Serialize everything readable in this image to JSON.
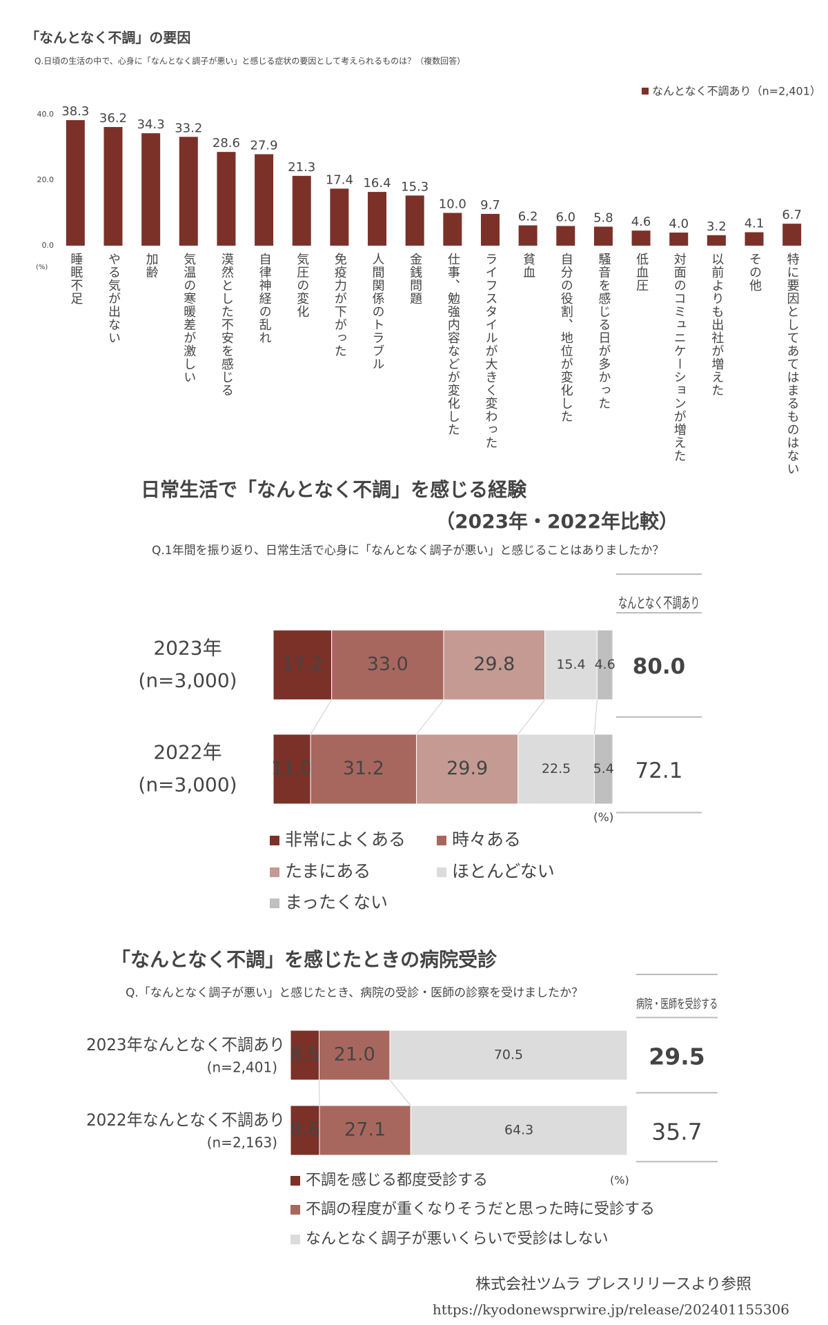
{
  "chart_data": [
    {
      "type": "bar",
      "title": "「なんとなく不調」の要因",
      "subtitle": "Q.日頃の生活の中で、心身に「なんとなく調子が悪い」と感じる症状の要因として考えられるものは？（複数回答）",
      "y_unit": "(%)",
      "categories": [
        "睡眠不足",
        "やる気が出ない",
        "加齢",
        "気温の寒暖差が激しい",
        "漠然とした不安を感じる",
        "自律神経の乱れ",
        "気圧の変化",
        "免疫力が下がった",
        "人間関係のトラブル",
        "金銭問題",
        "仕事、勉強内容などが変化した",
        "ライフスタイルが大きく変わった",
        "貧血",
        "自分の役割、地位が変化した",
        "騒音を感じる日が多かった",
        "低血圧",
        "対面のコミュニケーションが増えた",
        "以前よりも出社が増えた",
        "その他",
        "特に要因としてあてはまるものはない"
      ],
      "series": [
        {
          "name": "なんとなく不調あり（n=2,401）",
          "color": "#7b3128",
          "values": [
            38.3,
            36.2,
            34.3,
            33.2,
            28.6,
            27.9,
            21.3,
            17.4,
            16.4,
            15.3,
            10.0,
            9.7,
            6.2,
            6.0,
            5.8,
            4.6,
            4.0,
            3.2,
            4.1,
            6.7
          ],
          "value_labels": [
            "38.3",
            "36.2",
            "34.3",
            "33.2",
            "28.6",
            "27.9",
            "21.3",
            "17.4",
            "16.4",
            "15.3",
            "10.0",
            "9.7",
            "6.2",
            "6.0",
            "5.8",
            "4.6",
            "4.0",
            "3.2",
            "4.1",
            "6.7"
          ]
        }
      ],
      "ylim": [
        0,
        40
      ],
      "yticks": [
        {
          "value": 0,
          "label": "0.0"
        },
        {
          "value": 20,
          "label": "20.0"
        },
        {
          "value": 40,
          "label": "40.0"
        }
      ],
      "grid": false,
      "legend": "top-right"
    },
    {
      "type": "stacked-bar-horizontal",
      "title": "日常生活で「なんとなく不調」を感じる経験",
      "subtitle": "（2023年・2022年比較）",
      "question": "Q.1年間を振り返り、日常生活で心身に「なんとなく調子が悪い」と感じることはありましたか？",
      "x_unit": "(%)",
      "categories": [
        "2023年",
        "2022年"
      ],
      "n_labels": [
        "(n=3,000)",
        "(n=3,000)"
      ],
      "series": [
        {
          "name": "非常によくある",
          "color": "#7b3128",
          "values": [
            17.2,
            11.0
          ],
          "value_labels": [
            "17.2",
            "11.0"
          ]
        },
        {
          "name": "時々ある",
          "color": "#a8675e",
          "values": [
            33.0,
            31.2
          ],
          "value_labels": [
            "33.0",
            "31.2"
          ]
        },
        {
          "name": "たまにある",
          "color": "#c49a93",
          "values": [
            29.8,
            29.9
          ],
          "value_labels": [
            "29.8",
            "29.9"
          ]
        },
        {
          "name": "ほとんどない",
          "color": "#dcdcdc",
          "values": [
            15.4,
            22.5
          ],
          "value_labels": [
            "15.4",
            "22.5"
          ]
        },
        {
          "name": "まったくない",
          "color": "#bfbfbf",
          "values": [
            4.6,
            5.4
          ],
          "value_labels": [
            "4.6",
            "5.4"
          ]
        }
      ],
      "xlim": [
        0,
        100
      ],
      "totals": {
        "header": "なんとなく不調あり",
        "values": [
          80.0,
          72.1
        ],
        "value_labels": [
          "80.0",
          "72.1"
        ]
      }
    },
    {
      "type": "stacked-bar-horizontal",
      "title": "「なんとなく不調」を感じたときの病院受診",
      "question": "Q.「なんとなく調子が悪い」と感じたとき、病院の受診・医師の診察を受けましたか？",
      "x_unit": "(%)",
      "categories": [
        "2023年なんとなく不調あり",
        "2022年なんとなく不調あり"
      ],
      "n_labels": [
        "(n=2,401)",
        "(n=2,163)"
      ],
      "series": [
        {
          "name": "不調を感じる都度受診する",
          "color": "#7b3128",
          "values": [
            8.5,
            8.6
          ],
          "value_labels": [
            "8.5",
            "8.6"
          ]
        },
        {
          "name": "不調の程度が重くなりそうだと思った時に受診する",
          "color": "#a8675e",
          "values": [
            21.0,
            27.1
          ],
          "value_labels": [
            "21.0",
            "27.1"
          ]
        },
        {
          "name": "なんとなく調子が悪いくらいで受診はしない",
          "color": "#dcdcdc",
          "values": [
            70.5,
            64.3
          ],
          "value_labels": [
            "70.5",
            "64.3"
          ]
        }
      ],
      "xlim": [
        0,
        100
      ],
      "totals": {
        "header": "病院・医師を受診する",
        "values": [
          29.5,
          35.7
        ],
        "value_labels": [
          "29.5",
          "35.7"
        ]
      }
    }
  ],
  "footer": {
    "source": "株式会社ツムラ プレスリリースより参照",
    "url": "https://kyodonewsprwire.jp/release/202401155306"
  }
}
